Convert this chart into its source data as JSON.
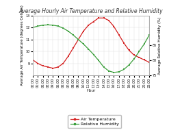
{
  "title": "Average Hourly Air Temperature and Relative Humidity",
  "xlabel": "Hour",
  "ylabel_left": "Average Air Temperature (degrees Celsius)",
  "ylabel_right": "Average Relative Humidity (%)",
  "hours": [
    "00:00",
    "01:00",
    "02:00",
    "03:00",
    "04:00",
    "05:00",
    "06:00",
    "07:00",
    "08:00",
    "09:00",
    "10:00",
    "11:00",
    "12:00",
    "13:00",
    "14:00",
    "15:00",
    "16:00",
    "17:00",
    "18:00",
    "19:00",
    "20:00",
    "21:00",
    "22:00",
    "23:00"
  ],
  "temp": [
    9.3,
    9.0,
    8.8,
    8.7,
    8.6,
    8.7,
    9.0,
    9.6,
    10.3,
    11.0,
    11.7,
    12.2,
    12.5,
    12.8,
    12.8,
    12.6,
    12.1,
    11.4,
    10.7,
    10.1,
    9.7,
    9.5,
    9.3,
    9.1
  ],
  "humidity": [
    91.0,
    91.5,
    91.8,
    91.9,
    91.8,
    91.5,
    90.8,
    89.8,
    88.5,
    87.0,
    85.5,
    83.8,
    82.0,
    80.0,
    77.8,
    76.5,
    76.0,
    76.2,
    77.0,
    78.5,
    80.5,
    83.0,
    85.5,
    88.5
  ],
  "temp_color": "#d42020",
  "humidity_color": "#3a9e3a",
  "background_color": "#ffffff",
  "grid_color": "#dddddd",
  "ylim_temp": [
    8,
    13
  ],
  "ylim_humidity": [
    75,
    95
  ],
  "temp_yticks": [
    9,
    10,
    11,
    12,
    13
  ],
  "humidity_yticks": [
    75,
    80,
    85
  ],
  "title_fontsize": 5.5,
  "axis_label_fontsize": 4,
  "tick_fontsize": 3.5,
  "legend_fontsize": 4.5
}
